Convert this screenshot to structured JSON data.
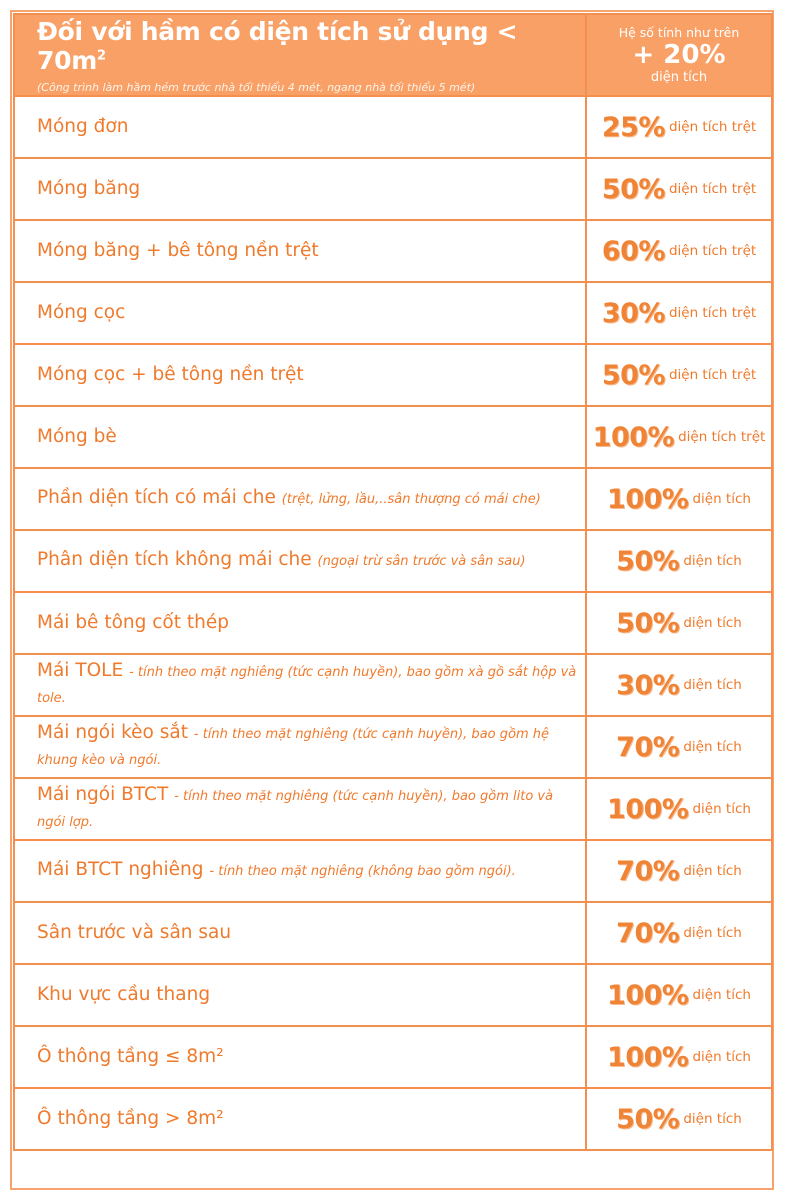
{
  "header": {
    "title": "Đối với hầm có diện tích sử dụng < 70m",
    "title_sup": "2",
    "subtitle": "(Công trình làm hầm hẻm trước nhà tối thiểu 4 mét, ngang nhà tối thiểu 5 mét)",
    "right_line1": "Hệ số tính như trên",
    "right_line2": "+ 20%",
    "right_line3": "diện tích"
  },
  "colors": {
    "header_bg": "#f9a066",
    "accent": "#f07a2c",
    "border": "#f4904f"
  },
  "rows": [
    {
      "label": "Móng đơn",
      "note": "",
      "value": "25%",
      "unit": "diện tích trệt"
    },
    {
      "label": "Móng băng",
      "note": "",
      "value": "50%",
      "unit": "diện tích trệt"
    },
    {
      "label": "Móng băng + bê tông nền trệt",
      "note": "",
      "value": "60%",
      "unit": "diện tích trệt"
    },
    {
      "label": "Móng cọc",
      "note": "",
      "value": "30%",
      "unit": "diện tích trệt"
    },
    {
      "label": "Móng cọc + bê tông nền trệt",
      "note": "",
      "value": "50%",
      "unit": "diện tích trệt"
    },
    {
      "label": "Móng bè",
      "note": "",
      "value": "100%",
      "unit": "diện tích trệt"
    },
    {
      "label": "Phần diện tích có mái che",
      "note": "(trệt, lửng, lầu,..sân thượng có mái che)",
      "value": "100%",
      "unit": "diện tích"
    },
    {
      "label": "Phân diện tích không mái che",
      "note": "(ngoại trừ sân trước và sân sau)",
      "value": "50%",
      "unit": "diện tích"
    },
    {
      "label": "Mái bê tông cốt thép",
      "note": "",
      "value": "50%",
      "unit": "diện tích"
    },
    {
      "label": "Mái TOLE",
      "note": "- tính theo mặt nghiêng (tức cạnh huyền), bao gồm xà gồ sắt hộp và tole.",
      "value": "30%",
      "unit": "diện tích"
    },
    {
      "label": "Mái ngói kèo sắt",
      "note": "- tính theo mặt nghiêng (tức cạnh huyền), bao gồm hệ khung kèo và ngói.",
      "value": "70%",
      "unit": "diện tích"
    },
    {
      "label": "Mái ngói BTCT",
      "note": "- tính theo mặt nghiêng (tức cạnh huyền), bao gồm lito và ngói lợp.",
      "value": "100%",
      "unit": "diện tích"
    },
    {
      "label": "Mái BTCT nghiêng",
      "note": "- tính theo mặt nghiêng (không bao gồm ngói).",
      "value": "70%",
      "unit": "diện tích"
    },
    {
      "label": "Sân trước và sân sau",
      "note": "",
      "value": "70%",
      "unit": "diện tích"
    },
    {
      "label": "Khu vực cầu thang",
      "note": "",
      "value": "100%",
      "unit": "diện tích"
    },
    {
      "label": "Ô thông tầng ≤ 8m²",
      "note": "",
      "value": "100%",
      "unit": "diện tích"
    },
    {
      "label": "Ô thông tầng > 8m²",
      "note": "",
      "value": "50%",
      "unit": "diện tích"
    }
  ]
}
